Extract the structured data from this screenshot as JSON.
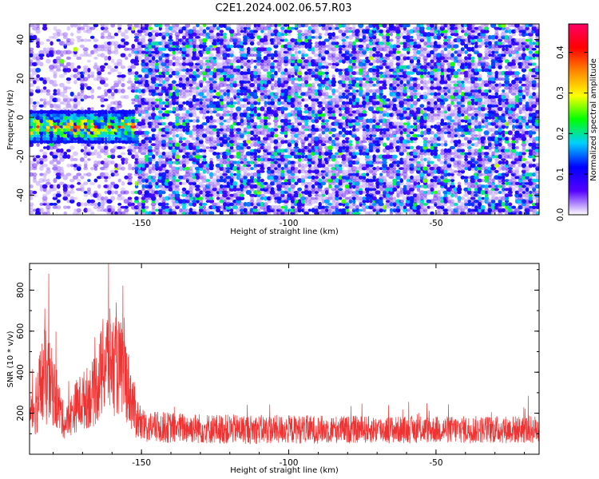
{
  "title": "C2E1.2024.002.06.57.R03",
  "chart_data": [
    {
      "type": "heatmap",
      "xlabel": "Height of straight line (km)",
      "ylabel": "Frequency (Hz)",
      "xlim": [
        -188,
        -15
      ],
      "ylim": [
        -50,
        48
      ],
      "xticks": [
        -150,
        -100,
        -50
      ],
      "xtick_labels": [
        "-150",
        "-100",
        "-50"
      ],
      "yticks": [
        -40,
        -20,
        0,
        20,
        40
      ],
      "ytick_labels": [
        "-40",
        "-20",
        "0",
        "20",
        "40"
      ],
      "colorbar": {
        "label": "Normalized spectral amplitude",
        "range": [
          0.0,
          0.47
        ],
        "ticks": [
          0.0,
          0.1,
          0.2,
          0.3,
          0.4
        ],
        "tick_labels": [
          "0.0",
          "0.1",
          "0.2",
          "0.3",
          "0.4"
        ],
        "colormap": [
          "#ffffff",
          "#5500ff",
          "#0000ff",
          "#00d0ff",
          "#00ff00",
          "#ffff00",
          "#ff8800",
          "#ff0000",
          "#ff0066"
        ]
      },
      "features": {
        "strong_signal_band": {
          "x": [
            -188,
            -152
          ],
          "freq_center": -5,
          "freq_halfwidth": 8
        },
        "sparse_region_x": [
          -188,
          -152
        ],
        "noise_level": 0.12
      },
      "grid": false
    },
    {
      "type": "line",
      "xlabel": "Height of straight line (km)",
      "ylabel": "SNR (10 * v/v)",
      "xlim": [
        -188,
        -15
      ],
      "ylim": [
        0,
        930
      ],
      "xticks": [
        -150,
        -100,
        -50
      ],
      "xtick_labels": [
        "-150",
        "-100",
        "-50"
      ],
      "yticks": [
        200,
        400,
        600,
        800
      ],
      "ytick_labels": [
        "200",
        "400",
        "600",
        "800"
      ],
      "series_color": "#ee3333",
      "profile": [
        {
          "x": -188,
          "base": 140,
          "amp": 160
        },
        {
          "x": -183,
          "base": 300,
          "amp": 420
        },
        {
          "x": -180,
          "base": 260,
          "amp": 300
        },
        {
          "x": -176,
          "base": 120,
          "amp": 120
        },
        {
          "x": -172,
          "base": 200,
          "amp": 220
        },
        {
          "x": -166,
          "base": 250,
          "amp": 280
        },
        {
          "x": -162,
          "base": 380,
          "amp": 450
        },
        {
          "x": -156,
          "base": 340,
          "amp": 380
        },
        {
          "x": -152,
          "base": 160,
          "amp": 200
        },
        {
          "x": -150,
          "base": 110,
          "amp": 130
        },
        {
          "x": -120,
          "base": 100,
          "amp": 120
        },
        {
          "x": -90,
          "base": 100,
          "amp": 115
        },
        {
          "x": -60,
          "base": 100,
          "amp": 110
        },
        {
          "x": -15,
          "base": 100,
          "amp": 115
        }
      ],
      "peaks": [
        {
          "x": -181.5,
          "y": 880
        },
        {
          "x": -161.2,
          "y": 930
        },
        {
          "x": -158.6,
          "y": 740
        }
      ],
      "grid": false
    }
  ]
}
